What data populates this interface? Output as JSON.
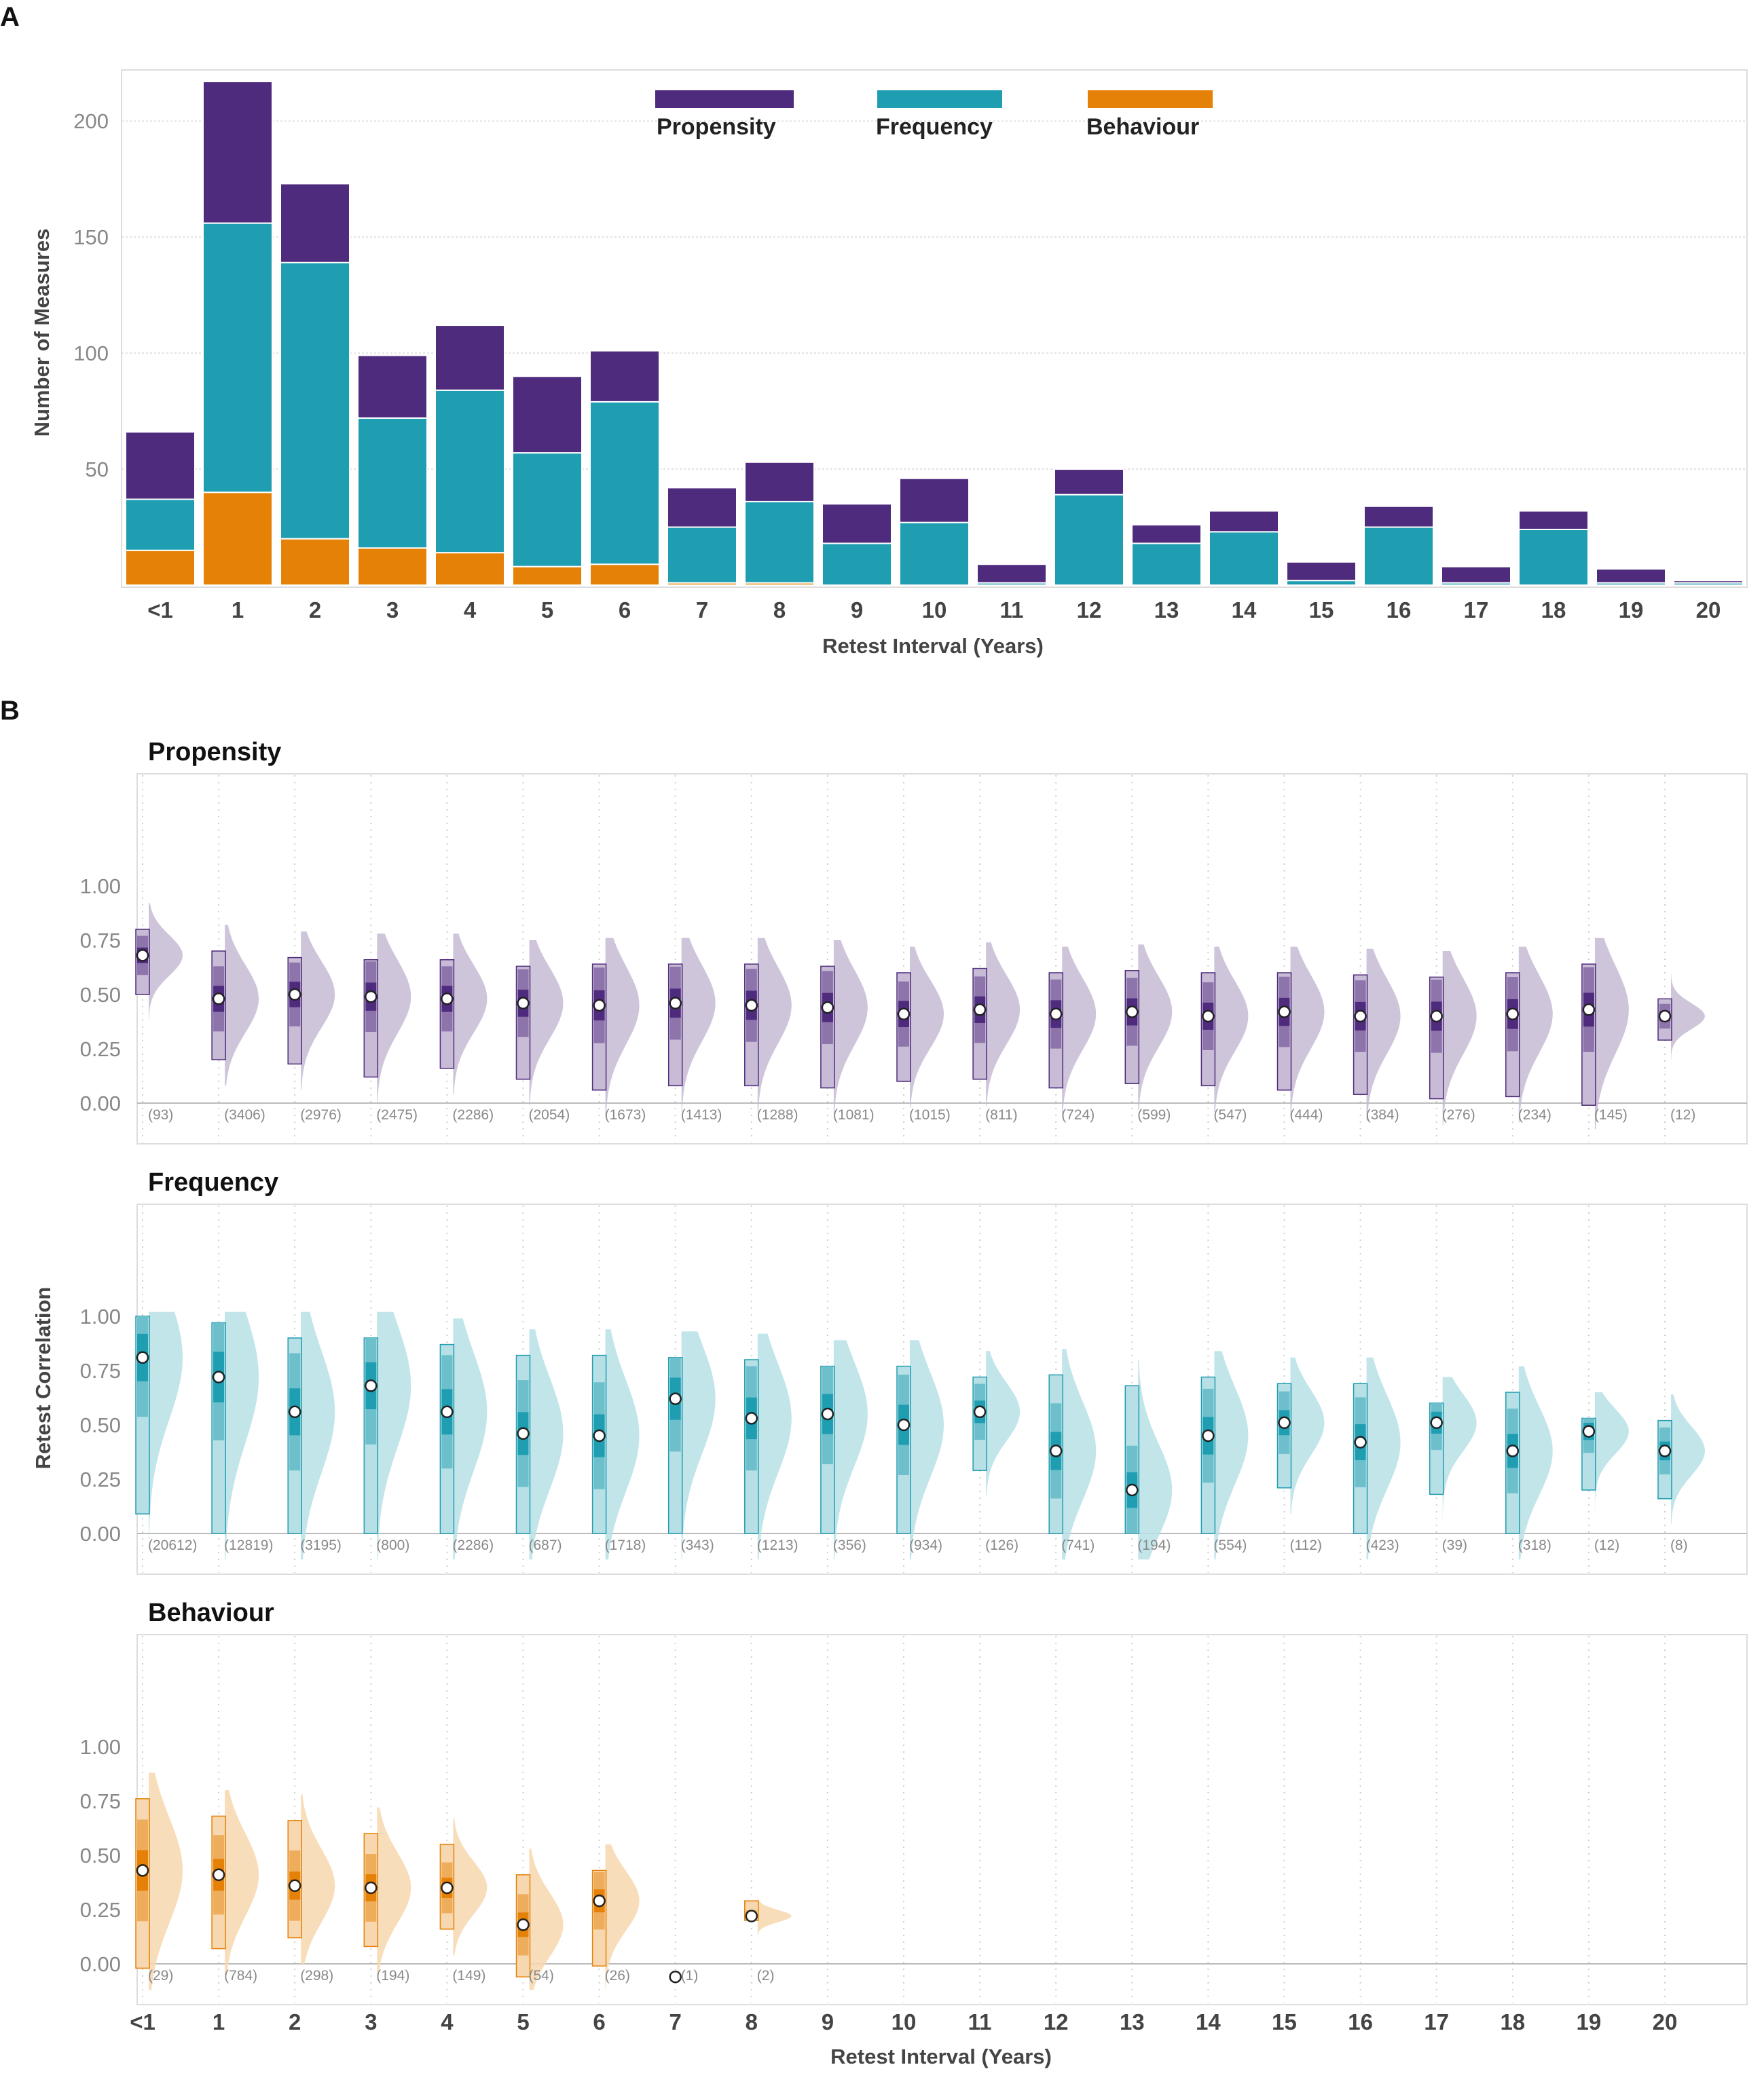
{
  "panelA": {
    "letter": "A",
    "ylabel": "Number of Measures",
    "xlabel": "Retest Interval (Years)",
    "legend": [
      {
        "key": "propensity",
        "label": "Propensity",
        "color": "#4f2b7d"
      },
      {
        "key": "frequency",
        "label": "Frequency",
        "color": "#1f9db1"
      },
      {
        "key": "behaviour",
        "label": "Behaviour",
        "color": "#e58106"
      }
    ]
  },
  "panelB": {
    "letter": "B",
    "ylabel": "Retest Correlation",
    "xlabel": "Retest Interval (Years)"
  },
  "chart_data": [
    {
      "type": "bar",
      "stacked": true,
      "categories": [
        "<1",
        "1",
        "2",
        "3",
        "4",
        "5",
        "6",
        "7",
        "8",
        "9",
        "10",
        "11",
        "12",
        "13",
        "14",
        "15",
        "16",
        "17",
        "18",
        "19",
        "20"
      ],
      "yticks": [
        50,
        100,
        150,
        200
      ],
      "ylim": [
        0,
        222
      ],
      "xlabel": "Retest Interval (Years)",
      "ylabel": "Number of Measures",
      "grid": "horizontal",
      "legend_position": "top-center",
      "series": [
        {
          "name": "Behaviour",
          "color": "#e58106",
          "values": [
            15,
            40,
            20,
            16,
            14,
            8,
            9,
            1,
            1,
            0,
            0,
            0,
            0,
            0,
            0,
            0,
            0,
            0,
            0,
            0,
            0
          ]
        },
        {
          "name": "Frequency",
          "color": "#1f9db1",
          "values": [
            22,
            116,
            119,
            56,
            70,
            49,
            70,
            24,
            35,
            18,
            27,
            1,
            39,
            18,
            23,
            2,
            25,
            1,
            24,
            1,
            1
          ]
        },
        {
          "name": "Propensity",
          "color": "#4f2b7d",
          "values": [
            29,
            61,
            34,
            27,
            28,
            33,
            22,
            17,
            17,
            17,
            19,
            8,
            11,
            8,
            9,
            8,
            9,
            7,
            8,
            6,
            1
          ]
        }
      ]
    },
    {
      "type": "raincloud",
      "title": "Propensity",
      "color": "#4f2b7d",
      "categories": [
        "<1",
        "1",
        "2",
        "3",
        "4",
        "5",
        "6",
        "7",
        "8",
        "9",
        "10",
        "11",
        "12",
        "13",
        "14",
        "15",
        "16",
        "17",
        "18",
        "19",
        "20"
      ],
      "yticks": [
        "0.00",
        "0.25",
        "0.50",
        "0.75",
        "1.00"
      ],
      "ylim": [
        0,
        1
      ],
      "medians": [
        0.68,
        0.48,
        0.5,
        0.49,
        0.48,
        0.46,
        0.45,
        0.46,
        0.45,
        0.44,
        0.41,
        0.43,
        0.41,
        0.42,
        0.4,
        0.42,
        0.4,
        0.4,
        0.41,
        0.43,
        0.4
      ],
      "q_low": [
        0.5,
        0.2,
        0.18,
        0.12,
        0.16,
        0.11,
        0.06,
        0.08,
        0.08,
        0.07,
        0.1,
        0.11,
        0.07,
        0.09,
        0.08,
        0.06,
        0.04,
        0.02,
        0.03,
        -0.01,
        0.29
      ],
      "q_high": [
        0.8,
        0.7,
        0.67,
        0.66,
        0.66,
        0.63,
        0.64,
        0.64,
        0.64,
        0.63,
        0.6,
        0.62,
        0.6,
        0.61,
        0.6,
        0.6,
        0.59,
        0.58,
        0.6,
        0.64,
        0.48
      ],
      "n_labels": [
        "(93)",
        "(3406)",
        "(2976)",
        "(2475)",
        "(2286)",
        "(2054)",
        "(1673)",
        "(1413)",
        "(1288)",
        "(1081)",
        "(1015)",
        "(811)",
        "(724)",
        "(599)",
        "(547)",
        "(444)",
        "(384)",
        "(276)",
        "(234)",
        "(145)",
        "(12)"
      ]
    },
    {
      "type": "raincloud",
      "title": "Frequency",
      "color": "#1f9db1",
      "categories": [
        "<1",
        "1",
        "2",
        "3",
        "4",
        "5",
        "6",
        "7",
        "8",
        "9",
        "10",
        "11",
        "12",
        "13",
        "14",
        "15",
        "16",
        "17",
        "18",
        "19",
        "20"
      ],
      "yticks": [
        "0.00",
        "0.25",
        "0.50",
        "0.75",
        "1.00"
      ],
      "ylim": [
        0,
        1
      ],
      "medians": [
        0.81,
        0.72,
        0.56,
        0.68,
        0.56,
        0.46,
        0.45,
        0.62,
        0.53,
        0.55,
        0.5,
        0.56,
        0.38,
        0.2,
        0.45,
        0.51,
        0.42,
        0.51,
        0.38,
        0.47,
        0.38
      ],
      "q_low": [
        0.09,
        0.0,
        0.0,
        0.0,
        0.0,
        0.0,
        0.0,
        0.0,
        0.0,
        0.0,
        0.0,
        0.29,
        0.0,
        0.0,
        0.0,
        0.21,
        0.0,
        0.18,
        0.0,
        0.2,
        0.16
      ],
      "q_high": [
        1.0,
        0.97,
        0.9,
        0.9,
        0.87,
        0.82,
        0.82,
        0.81,
        0.8,
        0.77,
        0.77,
        0.72,
        0.73,
        0.68,
        0.72,
        0.69,
        0.69,
        0.6,
        0.65,
        0.53,
        0.52
      ],
      "n_labels": [
        "(20612)",
        "(12819)",
        "(3195)",
        "(800)",
        "(2286)",
        "(687)",
        "(1718)",
        "(343)",
        "(1213)",
        "(356)",
        "(934)",
        "(126)",
        "(741)",
        "(194)",
        "(554)",
        "(112)",
        "(423)",
        "(39)",
        "(318)",
        "(12)",
        "(8)"
      ]
    },
    {
      "type": "raincloud",
      "title": "Behaviour",
      "color": "#e58106",
      "categories": [
        "<1",
        "1",
        "2",
        "3",
        "4",
        "5",
        "6",
        "7",
        "8",
        "9",
        "10",
        "11",
        "12",
        "13",
        "14",
        "15",
        "16",
        "17",
        "18",
        "19",
        "20"
      ],
      "yticks": [
        "0.00",
        "0.25",
        "0.50",
        "0.75",
        "1.00"
      ],
      "ylim": [
        0,
        1
      ],
      "medians": [
        0.43,
        0.41,
        0.36,
        0.35,
        0.35,
        0.18,
        0.29,
        -0.06,
        0.22
      ],
      "q_low": [
        -0.02,
        0.07,
        0.12,
        0.08,
        0.16,
        -0.06,
        -0.01,
        null,
        0.2
      ],
      "q_high": [
        0.76,
        0.68,
        0.66,
        0.6,
        0.55,
        0.41,
        0.43,
        null,
        0.29
      ],
      "n_labels": [
        "(29)",
        "(784)",
        "(298)",
        "(194)",
        "(149)",
        "(54)",
        "(26)",
        "(1)",
        "(2)"
      ]
    }
  ]
}
